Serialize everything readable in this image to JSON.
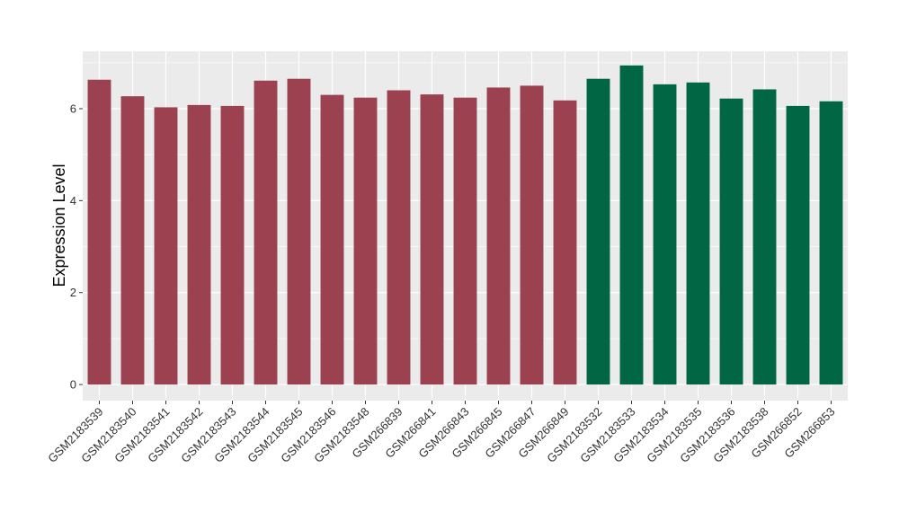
{
  "chart_data": {
    "type": "bar",
    "ylabel": "Expression Level",
    "xlabel": "",
    "ylim": [
      -0.35,
      7.25
    ],
    "yticks": [
      0,
      2,
      4,
      6
    ],
    "grid": true,
    "colors": {
      "group1": "#9b4150",
      "group2": "#006644",
      "panel": "#ebebeb",
      "grid": "#ffffff"
    },
    "categories": [
      "GSM2183539",
      "GSM2183540",
      "GSM2183541",
      "GSM2183542",
      "GSM2183543",
      "GSM2183544",
      "GSM2183545",
      "GSM2183546",
      "GSM2183548",
      "GSM266839",
      "GSM266841",
      "GSM266843",
      "GSM266845",
      "GSM266847",
      "GSM266849",
      "GSM2183532",
      "GSM2183533",
      "GSM2183534",
      "GSM2183535",
      "GSM2183536",
      "GSM2183538",
      "GSM266852",
      "GSM266853"
    ],
    "values": [
      6.63,
      6.27,
      6.03,
      6.08,
      6.06,
      6.61,
      6.65,
      6.3,
      6.24,
      6.4,
      6.31,
      6.24,
      6.46,
      6.5,
      6.18,
      6.65,
      6.94,
      6.53,
      6.57,
      6.22,
      6.42,
      6.06,
      6.16
    ],
    "groups": [
      1,
      1,
      1,
      1,
      1,
      1,
      1,
      1,
      1,
      1,
      1,
      1,
      1,
      1,
      1,
      2,
      2,
      2,
      2,
      2,
      2,
      2,
      2
    ]
  }
}
